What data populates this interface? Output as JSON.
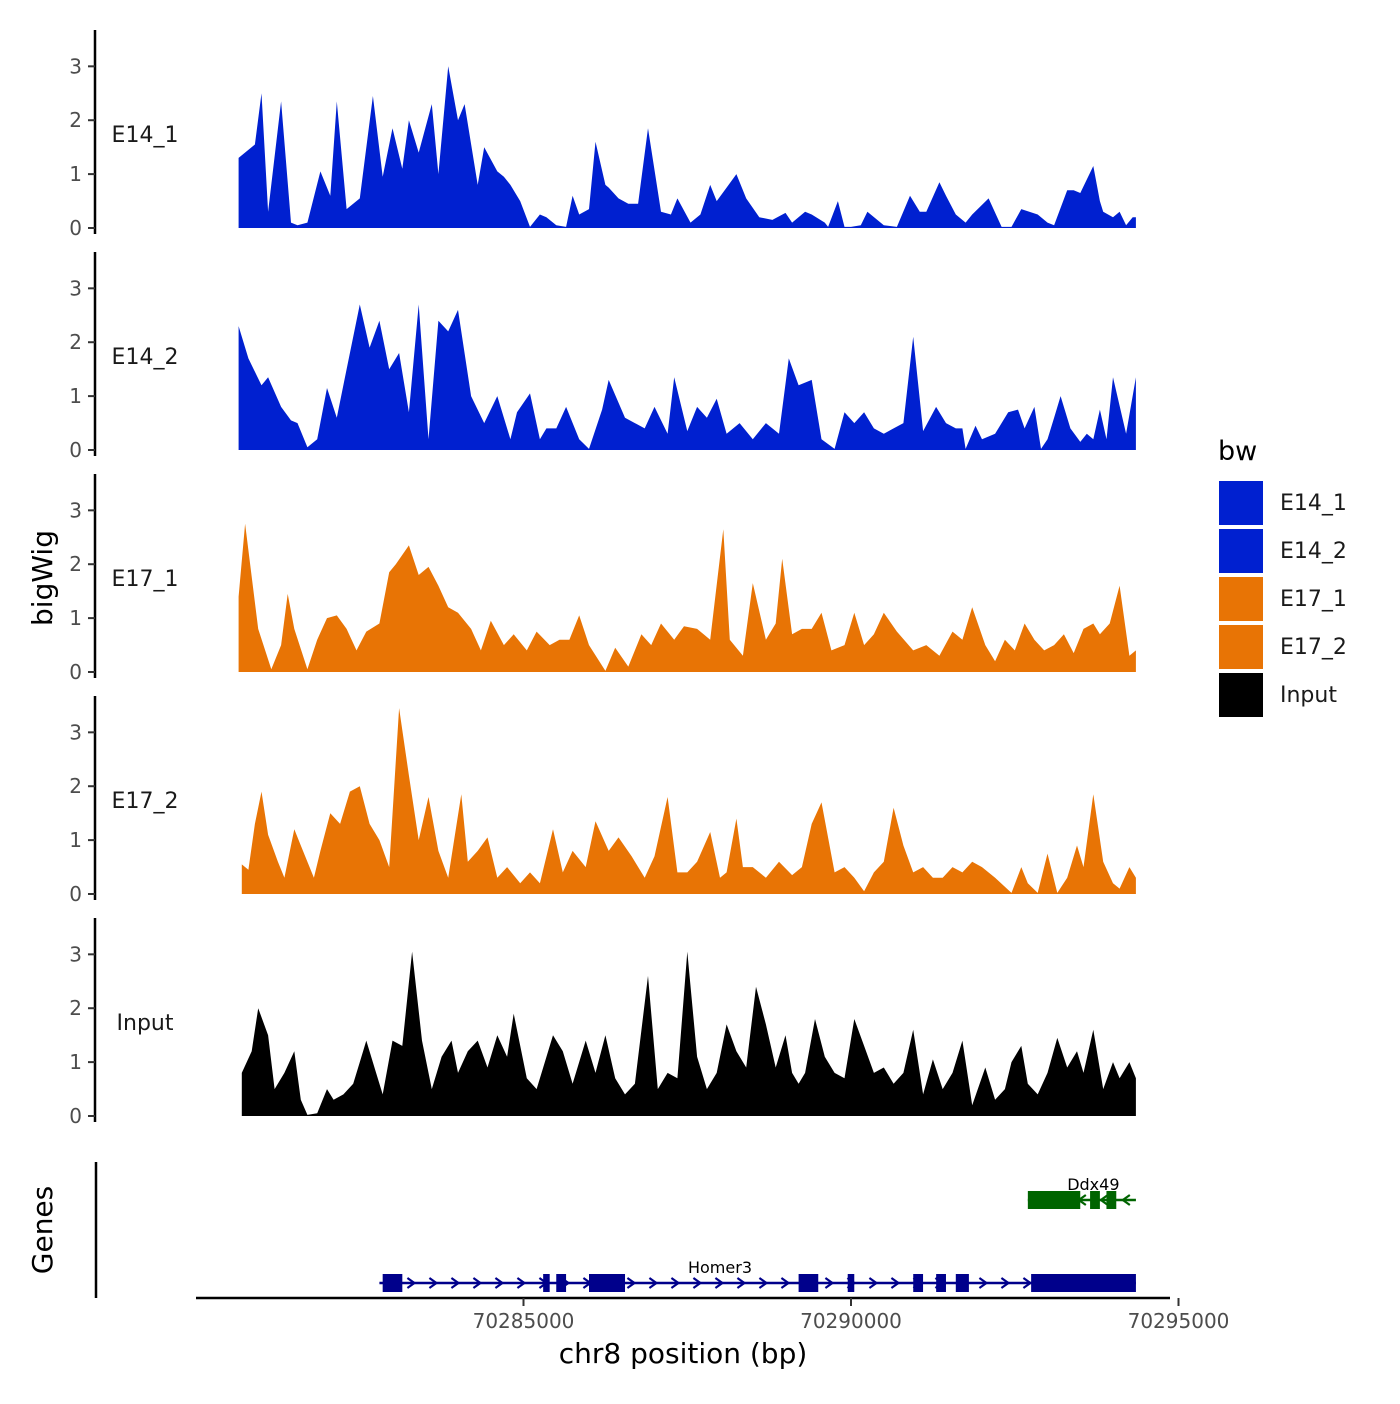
{
  "chart_data": {
    "type": "area",
    "title": "",
    "xlabel": "chr8 position (bp)",
    "ylabel": "bigWig",
    "genes_label": "Genes",
    "x_range": [
      70280600,
      70294400
    ],
    "x_ticks": [
      70285000,
      70290000,
      70295000
    ],
    "x_tick_labels": [
      "70285000",
      "70290000",
      "70295000"
    ],
    "ylim": [
      0,
      3.6
    ],
    "y_ticks": [
      0,
      1,
      2,
      3
    ],
    "y_tick_labels": [
      "0",
      "1",
      "2",
      "3"
    ],
    "legend": {
      "title": "bw",
      "entries": [
        {
          "label": "E14_1",
          "color": "#0020D0"
        },
        {
          "label": "E14_2",
          "color": "#0020D0"
        },
        {
          "label": "E17_1",
          "color": "#E87405"
        },
        {
          "label": "E17_2",
          "color": "#E87405"
        },
        {
          "label": "Input",
          "color": "#000000"
        }
      ]
    },
    "series": [
      {
        "name": "E14_1",
        "color": "#0020D0",
        "x": [
          70280650,
          70280900,
          70281000,
          70281100,
          70281300,
          70281450,
          70281550,
          70281700,
          70281900,
          70282050,
          70282150,
          70282300,
          70282500,
          70282700,
          70282850,
          70283000,
          70283150,
          70283250,
          70283400,
          70283600,
          70283700,
          70283850,
          70284000,
          70284100,
          70284300,
          70284400,
          70284600,
          70284700,
          70284800,
          70284950,
          70285100,
          70285250,
          70285350,
          70285500,
          70285650,
          70285750,
          70285850,
          70286000,
          70286100,
          70286250,
          70286300,
          70286450,
          70286600,
          70286750,
          70286900,
          70287100,
          70287250,
          70287350,
          70287550,
          70287700,
          70287850,
          70287950,
          70288100,
          70288250,
          70288400,
          70288600,
          70288800,
          70289000,
          70289100,
          70289300,
          70289400,
          70289600,
          70289650,
          70289800,
          70289900,
          70290000,
          70290150,
          70290250,
          70290500,
          70290700,
          70290900,
          70291050,
          70291150,
          70291350,
          70291450,
          70291600,
          70291750,
          70291850,
          70292100,
          70292300,
          70292450,
          70292600,
          70292850,
          70293000,
          70293100,
          70293300,
          70293400,
          70293500,
          70293700,
          70293800,
          70293850,
          70294000,
          70294100,
          70294200,
          70294300,
          70294350
        ],
        "y": [
          1.3,
          1.55,
          2.5,
          0.3,
          2.35,
          0.1,
          0.05,
          0.1,
          1.05,
          0.6,
          2.35,
          0.35,
          0.55,
          2.45,
          0.95,
          1.85,
          1.1,
          2.0,
          1.4,
          2.3,
          1.0,
          3.0,
          2.0,
          2.3,
          0.8,
          1.5,
          1.05,
          0.95,
          0.8,
          0.5,
          0.02,
          0.25,
          0.2,
          0.05,
          0.02,
          0.6,
          0.25,
          0.35,
          1.6,
          0.8,
          0.75,
          0.55,
          0.45,
          0.45,
          1.85,
          0.3,
          0.25,
          0.55,
          0.1,
          0.25,
          0.8,
          0.5,
          0.75,
          1.0,
          0.55,
          0.2,
          0.15,
          0.28,
          0.1,
          0.3,
          0.25,
          0.1,
          0.02,
          0.5,
          0.02,
          0.02,
          0.05,
          0.3,
          0.05,
          0.02,
          0.6,
          0.3,
          0.3,
          0.85,
          0.6,
          0.25,
          0.1,
          0.25,
          0.55,
          0.02,
          0.02,
          0.35,
          0.25,
          0.1,
          0.05,
          0.7,
          0.7,
          0.65,
          1.15,
          0.5,
          0.3,
          0.2,
          0.3,
          0.05,
          0.2,
          0.2
        ]
      },
      {
        "name": "E14_2",
        "color": "#0020D0",
        "x": [
          70280650,
          70280800,
          70281000,
          70281100,
          70281300,
          70281450,
          70281550,
          70281700,
          70281850,
          70282000,
          70282150,
          70282300,
          70282500,
          70282650,
          70282800,
          70282950,
          70283100,
          70283250,
          70283400,
          70283550,
          70283700,
          70283850,
          70284000,
          70284200,
          70284400,
          70284600,
          70284800,
          70284900,
          70285100,
          70285250,
          70285350,
          70285500,
          70285650,
          70285850,
          70286000,
          70286200,
          70286300,
          70286550,
          70286700,
          70286850,
          70287000,
          70287200,
          70287300,
          70287500,
          70287650,
          70287800,
          70287950,
          70288100,
          70288300,
          70288500,
          70288700,
          70288900,
          70289050,
          70289200,
          70289400,
          70289550,
          70289750,
          70289900,
          70290050,
          70290200,
          70290350,
          70290500,
          70290650,
          70290800,
          70290950,
          70291100,
          70291300,
          70291450,
          70291600,
          70291700,
          70291750,
          70291900,
          70292000,
          70292200,
          70292400,
          70292550,
          70292650,
          70292800,
          70292900,
          70293000,
          70293100,
          70293200,
          70293350,
          70293500,
          70293600,
          70293700,
          70293800,
          70293900,
          70294000,
          70294200,
          70294350
        ],
        "y": [
          2.3,
          1.7,
          1.2,
          1.35,
          0.8,
          0.55,
          0.5,
          0.05,
          0.2,
          1.15,
          0.6,
          1.5,
          2.7,
          1.9,
          2.4,
          1.5,
          1.8,
          0.7,
          2.7,
          0.2,
          2.4,
          2.2,
          2.6,
          1.0,
          0.5,
          1.0,
          0.2,
          0.7,
          1.05,
          0.2,
          0.4,
          0.4,
          0.8,
          0.2,
          0.02,
          0.75,
          1.3,
          0.6,
          0.5,
          0.4,
          0.8,
          0.3,
          1.35,
          0.35,
          0.8,
          0.6,
          0.95,
          0.3,
          0.5,
          0.2,
          0.5,
          0.3,
          1.7,
          1.2,
          1.3,
          0.2,
          0.02,
          0.7,
          0.5,
          0.7,
          0.4,
          0.3,
          0.4,
          0.5,
          2.1,
          0.35,
          0.8,
          0.5,
          0.4,
          0.4,
          0.02,
          0.45,
          0.2,
          0.3,
          0.7,
          0.75,
          0.4,
          0.8,
          0.02,
          0.2,
          0.6,
          1.0,
          0.4,
          0.15,
          0.3,
          0.2,
          0.75,
          0.2,
          1.35,
          0.3,
          1.35
        ]
      },
      {
        "name": "E17_1",
        "color": "#E87405",
        "x": [
          70280650,
          70280750,
          70280950,
          70281150,
          70281300,
          70281400,
          70281500,
          70281700,
          70281850,
          70282000,
          70282150,
          70282300,
          70282450,
          70282600,
          70282800,
          70282950,
          70283050,
          70283250,
          70283400,
          70283550,
          70283700,
          70283850,
          70284000,
          70284200,
          70284350,
          70284500,
          70284700,
          70284850,
          70285050,
          70285200,
          70285400,
          70285550,
          70285700,
          70285850,
          70286000,
          70286250,
          70286400,
          70286600,
          70286800,
          70286950,
          70287100,
          70287300,
          70287450,
          70287650,
          70287850,
          70288050,
          70288150,
          70288350,
          70288500,
          70288700,
          70288850,
          70288950,
          70289100,
          70289250,
          70289400,
          70289550,
          70289700,
          70289900,
          70290050,
          70290200,
          70290350,
          70290500,
          70290700,
          70290950,
          70291150,
          70291350,
          70291550,
          70291700,
          70291850,
          70292050,
          70292200,
          70292350,
          70292500,
          70292650,
          70292800,
          70292950,
          70293100,
          70293250,
          70293400,
          70293550,
          70293700,
          70293800,
          70293950,
          70294100,
          70294250,
          70294350
        ],
        "y": [
          1.4,
          2.75,
          0.8,
          0.05,
          0.5,
          1.45,
          0.8,
          0.05,
          0.6,
          1.0,
          1.05,
          0.8,
          0.4,
          0.75,
          0.9,
          1.85,
          2.0,
          2.35,
          1.8,
          1.95,
          1.6,
          1.2,
          1.1,
          0.8,
          0.4,
          0.95,
          0.5,
          0.7,
          0.4,
          0.75,
          0.5,
          0.6,
          0.6,
          1.05,
          0.5,
          0.02,
          0.45,
          0.1,
          0.7,
          0.5,
          0.9,
          0.6,
          0.85,
          0.8,
          0.6,
          2.65,
          0.6,
          0.3,
          1.65,
          0.6,
          0.9,
          2.1,
          0.7,
          0.8,
          0.8,
          1.1,
          0.4,
          0.5,
          1.1,
          0.5,
          0.7,
          1.1,
          0.75,
          0.4,
          0.5,
          0.3,
          0.75,
          0.6,
          1.2,
          0.5,
          0.2,
          0.6,
          0.4,
          0.9,
          0.6,
          0.4,
          0.5,
          0.7,
          0.35,
          0.8,
          0.9,
          0.7,
          0.9,
          1.6,
          0.3,
          0.4
        ]
      },
      {
        "name": "E17_2",
        "color": "#E87405",
        "x": [
          70280700,
          70280800,
          70280900,
          70281000,
          70281100,
          70281250,
          70281350,
          70281500,
          70281600,
          70281800,
          70281900,
          70282050,
          70282200,
          70282350,
          70282500,
          70282650,
          70282800,
          70282950,
          70283100,
          70283250,
          70283400,
          70283550,
          70283700,
          70283850,
          70284050,
          70284150,
          70284300,
          70284450,
          70284600,
          70284750,
          70284950,
          70285100,
          70285250,
          70285450,
          70285600,
          70285750,
          70285950,
          70286100,
          70286300,
          70286450,
          70286650,
          70286850,
          70287000,
          70287200,
          70287350,
          70287500,
          70287650,
          70287850,
          70288000,
          70288100,
          70288250,
          70288350,
          70288500,
          70288700,
          70288900,
          70289100,
          70289250,
          70289400,
          70289550,
          70289750,
          70289900,
          70290050,
          70290200,
          70290350,
          70290500,
          70290650,
          70290800,
          70290950,
          70291100,
          70291250,
          70291400,
          70291550,
          70291700,
          70291850,
          70292000,
          70292200,
          70292450,
          70292600,
          70292700,
          70292850,
          70293000,
          70293150,
          70293300,
          70293450,
          70293550,
          70293700,
          70293850,
          70294000,
          70294100,
          70294250,
          70294350
        ],
        "y": [
          0.55,
          0.45,
          1.3,
          1.9,
          1.1,
          0.6,
          0.3,
          1.2,
          0.9,
          0.3,
          0.8,
          1.5,
          1.3,
          1.9,
          2.0,
          1.3,
          1.0,
          0.5,
          3.45,
          2.2,
          1.0,
          1.8,
          0.8,
          0.3,
          1.85,
          0.6,
          0.8,
          1.05,
          0.3,
          0.5,
          0.2,
          0.4,
          0.2,
          1.2,
          0.4,
          0.8,
          0.5,
          1.35,
          0.8,
          1.05,
          0.7,
          0.3,
          0.7,
          1.8,
          0.4,
          0.4,
          0.6,
          1.15,
          0.3,
          0.4,
          1.4,
          0.5,
          0.5,
          0.3,
          0.6,
          0.35,
          0.5,
          1.3,
          1.7,
          0.4,
          0.5,
          0.3,
          0.05,
          0.4,
          0.6,
          1.6,
          0.9,
          0.4,
          0.5,
          0.3,
          0.3,
          0.5,
          0.4,
          0.6,
          0.5,
          0.3,
          0.02,
          0.5,
          0.2,
          0.02,
          0.75,
          0.02,
          0.3,
          0.9,
          0.5,
          1.85,
          0.6,
          0.2,
          0.1,
          0.5,
          0.3
        ]
      },
      {
        "name": "Input",
        "color": "#000000",
        "x": [
          70280700,
          70280850,
          70280950,
          70281100,
          70281200,
          70281350,
          70281500,
          70281600,
          70281700,
          70281850,
          70282000,
          70282100,
          70282250,
          70282400,
          70282500,
          70282600,
          70282750,
          70282850,
          70283000,
          70283150,
          70283300,
          70283450,
          70283600,
          70283750,
          70283900,
          70284000,
          70284150,
          70284300,
          70284450,
          70284600,
          70284750,
          70284850,
          70285050,
          70285200,
          70285300,
          70285450,
          70285600,
          70285750,
          70285950,
          70286100,
          70286250,
          70286400,
          70286550,
          70286700,
          70286900,
          70287050,
          70287200,
          70287350,
          70287500,
          70287650,
          70287800,
          70287950,
          70288100,
          70288250,
          70288400,
          70288550,
          70288700,
          70288850,
          70289000,
          70289100,
          70289200,
          70289300,
          70289450,
          70289600,
          70289750,
          70289900,
          70290050,
          70290200,
          70290350,
          70290500,
          70290650,
          70290800,
          70290950,
          70291100,
          70291250,
          70291400,
          70291550,
          70291700,
          70291850,
          70292050,
          70292200,
          70292350,
          70292450,
          70292600,
          70292700,
          70292850,
          70293000,
          70293150,
          70293300,
          70293450,
          70293550,
          70293700,
          70293850,
          70294000,
          70294100,
          70294250,
          70294350
        ],
        "y": [
          0.8,
          1.2,
          2.0,
          1.5,
          0.5,
          0.8,
          1.2,
          0.3,
          0.02,
          0.05,
          0.5,
          0.3,
          0.4,
          0.6,
          1.0,
          1.4,
          0.8,
          0.4,
          1.4,
          1.3,
          3.05,
          1.4,
          0.5,
          1.1,
          1.4,
          0.8,
          1.2,
          1.4,
          0.9,
          1.5,
          1.1,
          1.9,
          0.7,
          0.5,
          0.9,
          1.5,
          1.2,
          0.6,
          1.4,
          0.8,
          1.5,
          0.7,
          0.4,
          0.6,
          2.6,
          0.5,
          0.8,
          0.7,
          3.05,
          1.1,
          0.5,
          0.8,
          1.7,
          1.2,
          0.9,
          2.4,
          1.7,
          0.9,
          1.5,
          0.8,
          0.6,
          0.8,
          1.8,
          1.1,
          0.8,
          0.7,
          1.8,
          1.3,
          0.8,
          0.9,
          0.6,
          0.8,
          1.6,
          0.4,
          1.05,
          0.5,
          0.8,
          1.4,
          0.2,
          0.9,
          0.3,
          0.5,
          1.0,
          1.3,
          0.6,
          0.4,
          0.8,
          1.45,
          0.9,
          1.2,
          0.8,
          1.6,
          0.5,
          1.0,
          0.7,
          1.0,
          0.7
        ]
      }
    ],
    "genes": [
      {
        "name": "Homer3",
        "strand": "+",
        "color": "#00008B",
        "start": 70282800,
        "end": 70294350,
        "exons": [
          [
            70282850,
            70283150
          ],
          [
            70285300,
            70285400
          ],
          [
            70285500,
            70285650
          ],
          [
            70286000,
            70286550
          ],
          [
            70289200,
            70289500
          ],
          [
            70289950,
            70290050
          ],
          [
            70290950,
            70291100
          ],
          [
            70291300,
            70291450
          ],
          [
            70291600,
            70291800
          ],
          [
            70292750,
            70294350
          ]
        ]
      },
      {
        "name": "Ddx49",
        "strand": "-",
        "color": "#006400",
        "start": 70292700,
        "end": 70294350,
        "exons": [
          [
            70292700,
            70293500
          ],
          [
            70293650,
            70293800
          ],
          [
            70293900,
            70294050
          ]
        ]
      }
    ]
  }
}
